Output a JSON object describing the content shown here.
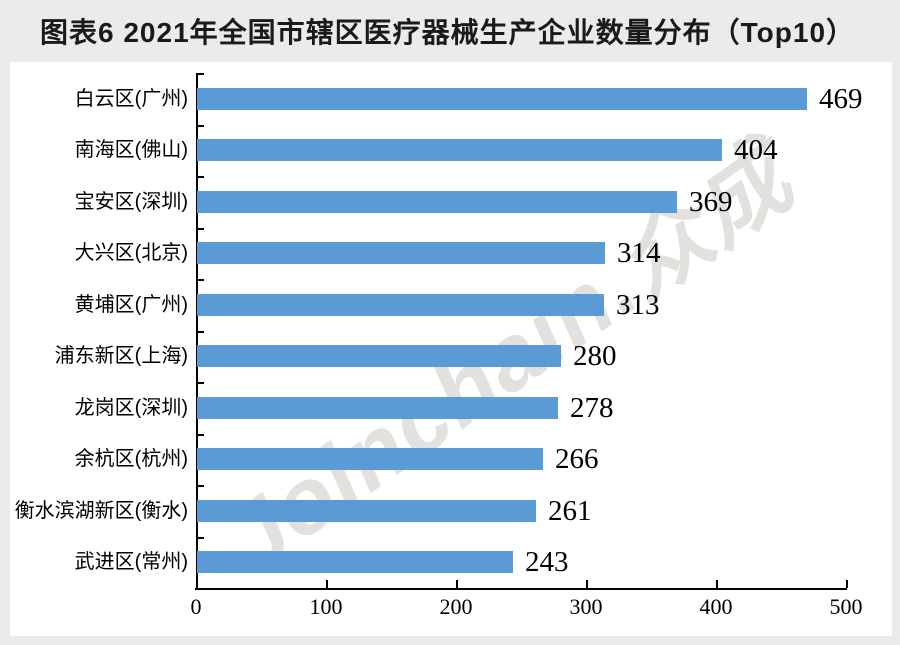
{
  "title": "图表6 2021年全国市辖区医疗器械生产企业数量分布（Top10）",
  "watermark": "Joinchain.众成",
  "colors": {
    "bar": "#5B9BD5",
    "title_text": "#1a1a1a",
    "header_background": "#ebebeb",
    "panel_background": "#ffffff",
    "axis": "#000000",
    "watermark_text": "rgba(202,198,193,0.53)"
  },
  "chart_data": {
    "type": "bar",
    "orientation": "horizontal",
    "title": "图表6 2021年全国市辖区医疗器械生产企业数量分布（Top10）",
    "categories": [
      "白云区(广州)",
      "南海区(佛山)",
      "宝安区(深圳)",
      "大兴区(北京)",
      "黄埔区(广州)",
      "浦东新区(上海)",
      "龙岗区(深圳)",
      "余杭区(杭州)",
      "衡水滨湖新区(衡水)",
      "武进区(常州)"
    ],
    "values": [
      469,
      404,
      369,
      314,
      313,
      280,
      278,
      266,
      261,
      243
    ],
    "value_labels": [
      "469",
      "404",
      "369",
      "314",
      "313",
      "280",
      "278",
      "266",
      "261",
      "243"
    ],
    "xlabel": "",
    "ylabel": "",
    "xlim": [
      0,
      500
    ],
    "x_ticks": [
      0,
      100,
      200,
      300,
      400,
      500
    ],
    "x_tick_labels": [
      "0",
      "100",
      "200",
      "300",
      "400",
      "500"
    ],
    "grid": false,
    "legend": false
  }
}
